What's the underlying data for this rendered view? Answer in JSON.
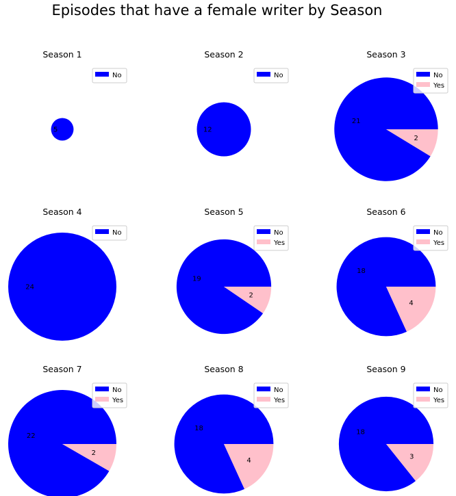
{
  "figure": {
    "title": "Episodes that have a female writer by Season"
  },
  "colors": {
    "No": "#0000ff",
    "Yes": "#ffc0cb"
  },
  "chart_data": [
    {
      "type": "pie",
      "title": "Season 1",
      "categories": [
        "No"
      ],
      "values": [
        5
      ],
      "legend": [
        "No"
      ]
    },
    {
      "type": "pie",
      "title": "Season 2",
      "categories": [
        "No"
      ],
      "values": [
        12
      ],
      "legend": [
        "No"
      ]
    },
    {
      "type": "pie",
      "title": "Season 3",
      "categories": [
        "No",
        "Yes"
      ],
      "values": [
        21,
        2
      ],
      "legend": [
        "No",
        "Yes"
      ]
    },
    {
      "type": "pie",
      "title": "Season 4",
      "categories": [
        "No"
      ],
      "values": [
        24
      ],
      "legend": [
        "No"
      ]
    },
    {
      "type": "pie",
      "title": "Season 5",
      "categories": [
        "No",
        "Yes"
      ],
      "values": [
        19,
        2
      ],
      "legend": [
        "No",
        "Yes"
      ]
    },
    {
      "type": "pie",
      "title": "Season 6",
      "categories": [
        "No",
        "Yes"
      ],
      "values": [
        18,
        4
      ],
      "legend": [
        "No",
        "Yes"
      ]
    },
    {
      "type": "pie",
      "title": "Season 7",
      "categories": [
        "No",
        "Yes"
      ],
      "values": [
        22,
        2
      ],
      "legend": [
        "No",
        "Yes"
      ]
    },
    {
      "type": "pie",
      "title": "Season 8",
      "categories": [
        "No",
        "Yes"
      ],
      "values": [
        18,
        4
      ],
      "legend": [
        "No",
        "Yes"
      ]
    },
    {
      "type": "pie",
      "title": "Season 9",
      "categories": [
        "No",
        "Yes"
      ],
      "values": [
        18,
        3
      ],
      "legend": [
        "No",
        "Yes"
      ]
    }
  ]
}
